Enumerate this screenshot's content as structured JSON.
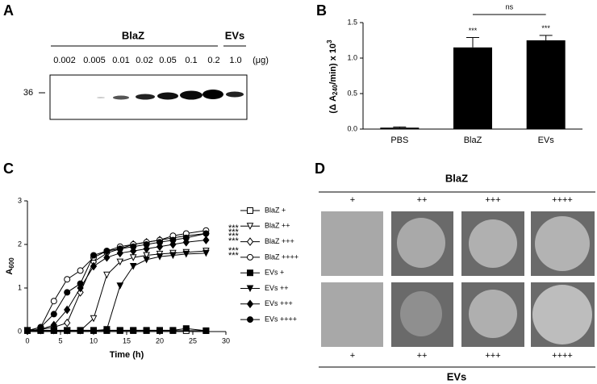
{
  "panel_labels": [
    "A",
    "B",
    "C",
    "D"
  ],
  "blot": {
    "group_labels": [
      "BlaZ",
      "EVs"
    ],
    "amounts": [
      "0.002",
      "0.005",
      "0.01",
      "0.02",
      "0.05",
      "0.1",
      "0.2",
      "1.0"
    ],
    "unit": "(μg)",
    "marker": "36"
  },
  "chart_data": [
    {
      "type": "bar",
      "ylabel": {
        "pre": "(Δ A",
        "sub": "240",
        "post": "/min) x 10",
        "sup": "3"
      },
      "categories": [
        "PBS",
        "BlaZ",
        "EVs"
      ],
      "values": [
        0.02,
        1.15,
        1.25
      ],
      "errors": [
        0.01,
        0.14,
        0.07
      ],
      "value_labels": [
        null,
        "***",
        "***"
      ],
      "color": "#000000",
      "ylim": [
        0,
        1.5
      ],
      "yticks": [
        {
          "value": 0,
          "label": "0.0"
        },
        0.5,
        {
          "value": 1,
          "label": "1.0"
        },
        1.5
      ],
      "annotation": "ns"
    },
    {
      "type": "line",
      "xlabel": "Time (h)",
      "ylabel": {
        "main": "A",
        "sub": "600"
      },
      "x": [
        0,
        2,
        4,
        6,
        8,
        10,
        12,
        14,
        16,
        18,
        20,
        22,
        24,
        27
      ],
      "xlim": [
        0,
        30
      ],
      "xticks": [
        0,
        5,
        10,
        15,
        20,
        25,
        30
      ],
      "ylim": [
        0,
        3
      ],
      "yticks": [
        0,
        1,
        2,
        3
      ],
      "series": [
        {
          "name": "BlaZ +",
          "color": "#000000",
          "marker": "square",
          "filled": false,
          "values": [
            0.02,
            0.02,
            0.02,
            0.02,
            0.02,
            0.02,
            0.02,
            0.02,
            0.02,
            0.02,
            0.02,
            0.02,
            0.02,
            0.02
          ]
        },
        {
          "name": "BlaZ ++",
          "color": "#000000",
          "marker": "triangle",
          "filled": false,
          "values": [
            0.02,
            0.02,
            0.02,
            0.02,
            0.02,
            0.3,
            1.3,
            1.6,
            1.7,
            1.75,
            1.78,
            1.8,
            1.82,
            1.85
          ]
        },
        {
          "name": "BlaZ +++",
          "color": "#000000",
          "marker": "diamond",
          "filled": false,
          "values": [
            0.02,
            0.05,
            0.1,
            0.2,
            0.9,
            1.6,
            1.8,
            1.9,
            2.0,
            2.05,
            2.1,
            2.15,
            2.2,
            2.25
          ]
        },
        {
          "name": "BlaZ ++++",
          "color": "#000000",
          "marker": "circle",
          "filled": false,
          "values": [
            0.02,
            0.1,
            0.7,
            1.2,
            1.4,
            1.7,
            1.85,
            1.95,
            2.0,
            2.05,
            2.1,
            2.2,
            2.25,
            2.32
          ]
        },
        {
          "name": "EVs +",
          "color": "#000000",
          "marker": "square",
          "filled": true,
          "values": [
            0.03,
            0.03,
            0.03,
            0.03,
            0.03,
            0.03,
            0.03,
            0.03,
            0.03,
            0.03,
            0.03,
            0.03,
            0.07,
            0.02
          ]
        },
        {
          "name": "EVs ++",
          "color": "#000000",
          "marker": "triangle",
          "filled": true,
          "values": [
            0.02,
            0.02,
            0.02,
            0.02,
            0.02,
            0.02,
            0.05,
            1.05,
            1.5,
            1.65,
            1.72,
            1.75,
            1.78,
            1.8
          ]
        },
        {
          "name": "EVs +++",
          "color": "#000000",
          "marker": "diamond",
          "filled": true,
          "values": [
            0.02,
            0.05,
            0.15,
            0.5,
            1.0,
            1.5,
            1.7,
            1.8,
            1.85,
            1.9,
            1.95,
            2.0,
            2.05,
            2.1
          ]
        },
        {
          "name": "EVs ++++",
          "color": "#000000",
          "marker": "circle",
          "filled": true,
          "values": [
            0.02,
            0.1,
            0.4,
            0.9,
            1.1,
            1.75,
            1.85,
            1.9,
            1.95,
            2.0,
            2.05,
            2.1,
            2.15,
            2.25
          ]
        }
      ],
      "annotations": [
        "***",
        "***",
        "***",
        "***",
        "***",
        "***"
      ]
    }
  ],
  "plates": {
    "top_title": "BlaZ",
    "bottom_title": "EVs",
    "top_columns": [
      "+",
      "++",
      "+++",
      "++++"
    ],
    "bottom_columns": [
      "+",
      "++",
      "+++",
      "++++"
    ]
  }
}
